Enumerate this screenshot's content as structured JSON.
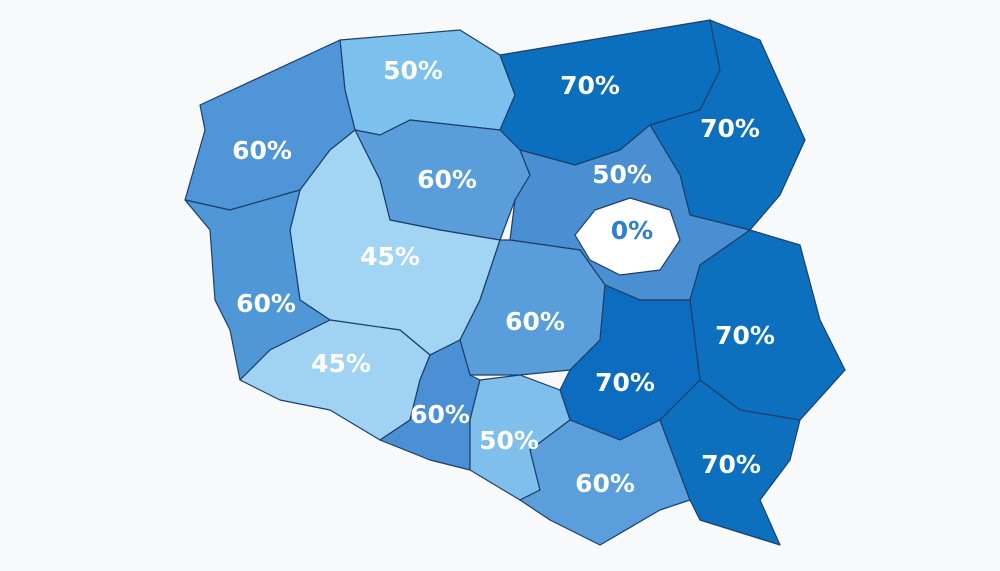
{
  "regions": [
    {
      "label": "50%"
    },
    {
      "label": "70%"
    },
    {
      "label": "70%"
    },
    {
      "label": "60%"
    },
    {
      "label": "60%"
    },
    {
      "label": "50%"
    },
    {
      "label": "0%"
    },
    {
      "label": "45%"
    },
    {
      "label": "60%"
    },
    {
      "label": "60%"
    },
    {
      "label": "70%"
    },
    {
      "label": "45%"
    },
    {
      "label": "70%"
    },
    {
      "label": "60%"
    },
    {
      "label": "50%"
    },
    {
      "label": "60%"
    },
    {
      "label": "70%"
    }
  ]
}
